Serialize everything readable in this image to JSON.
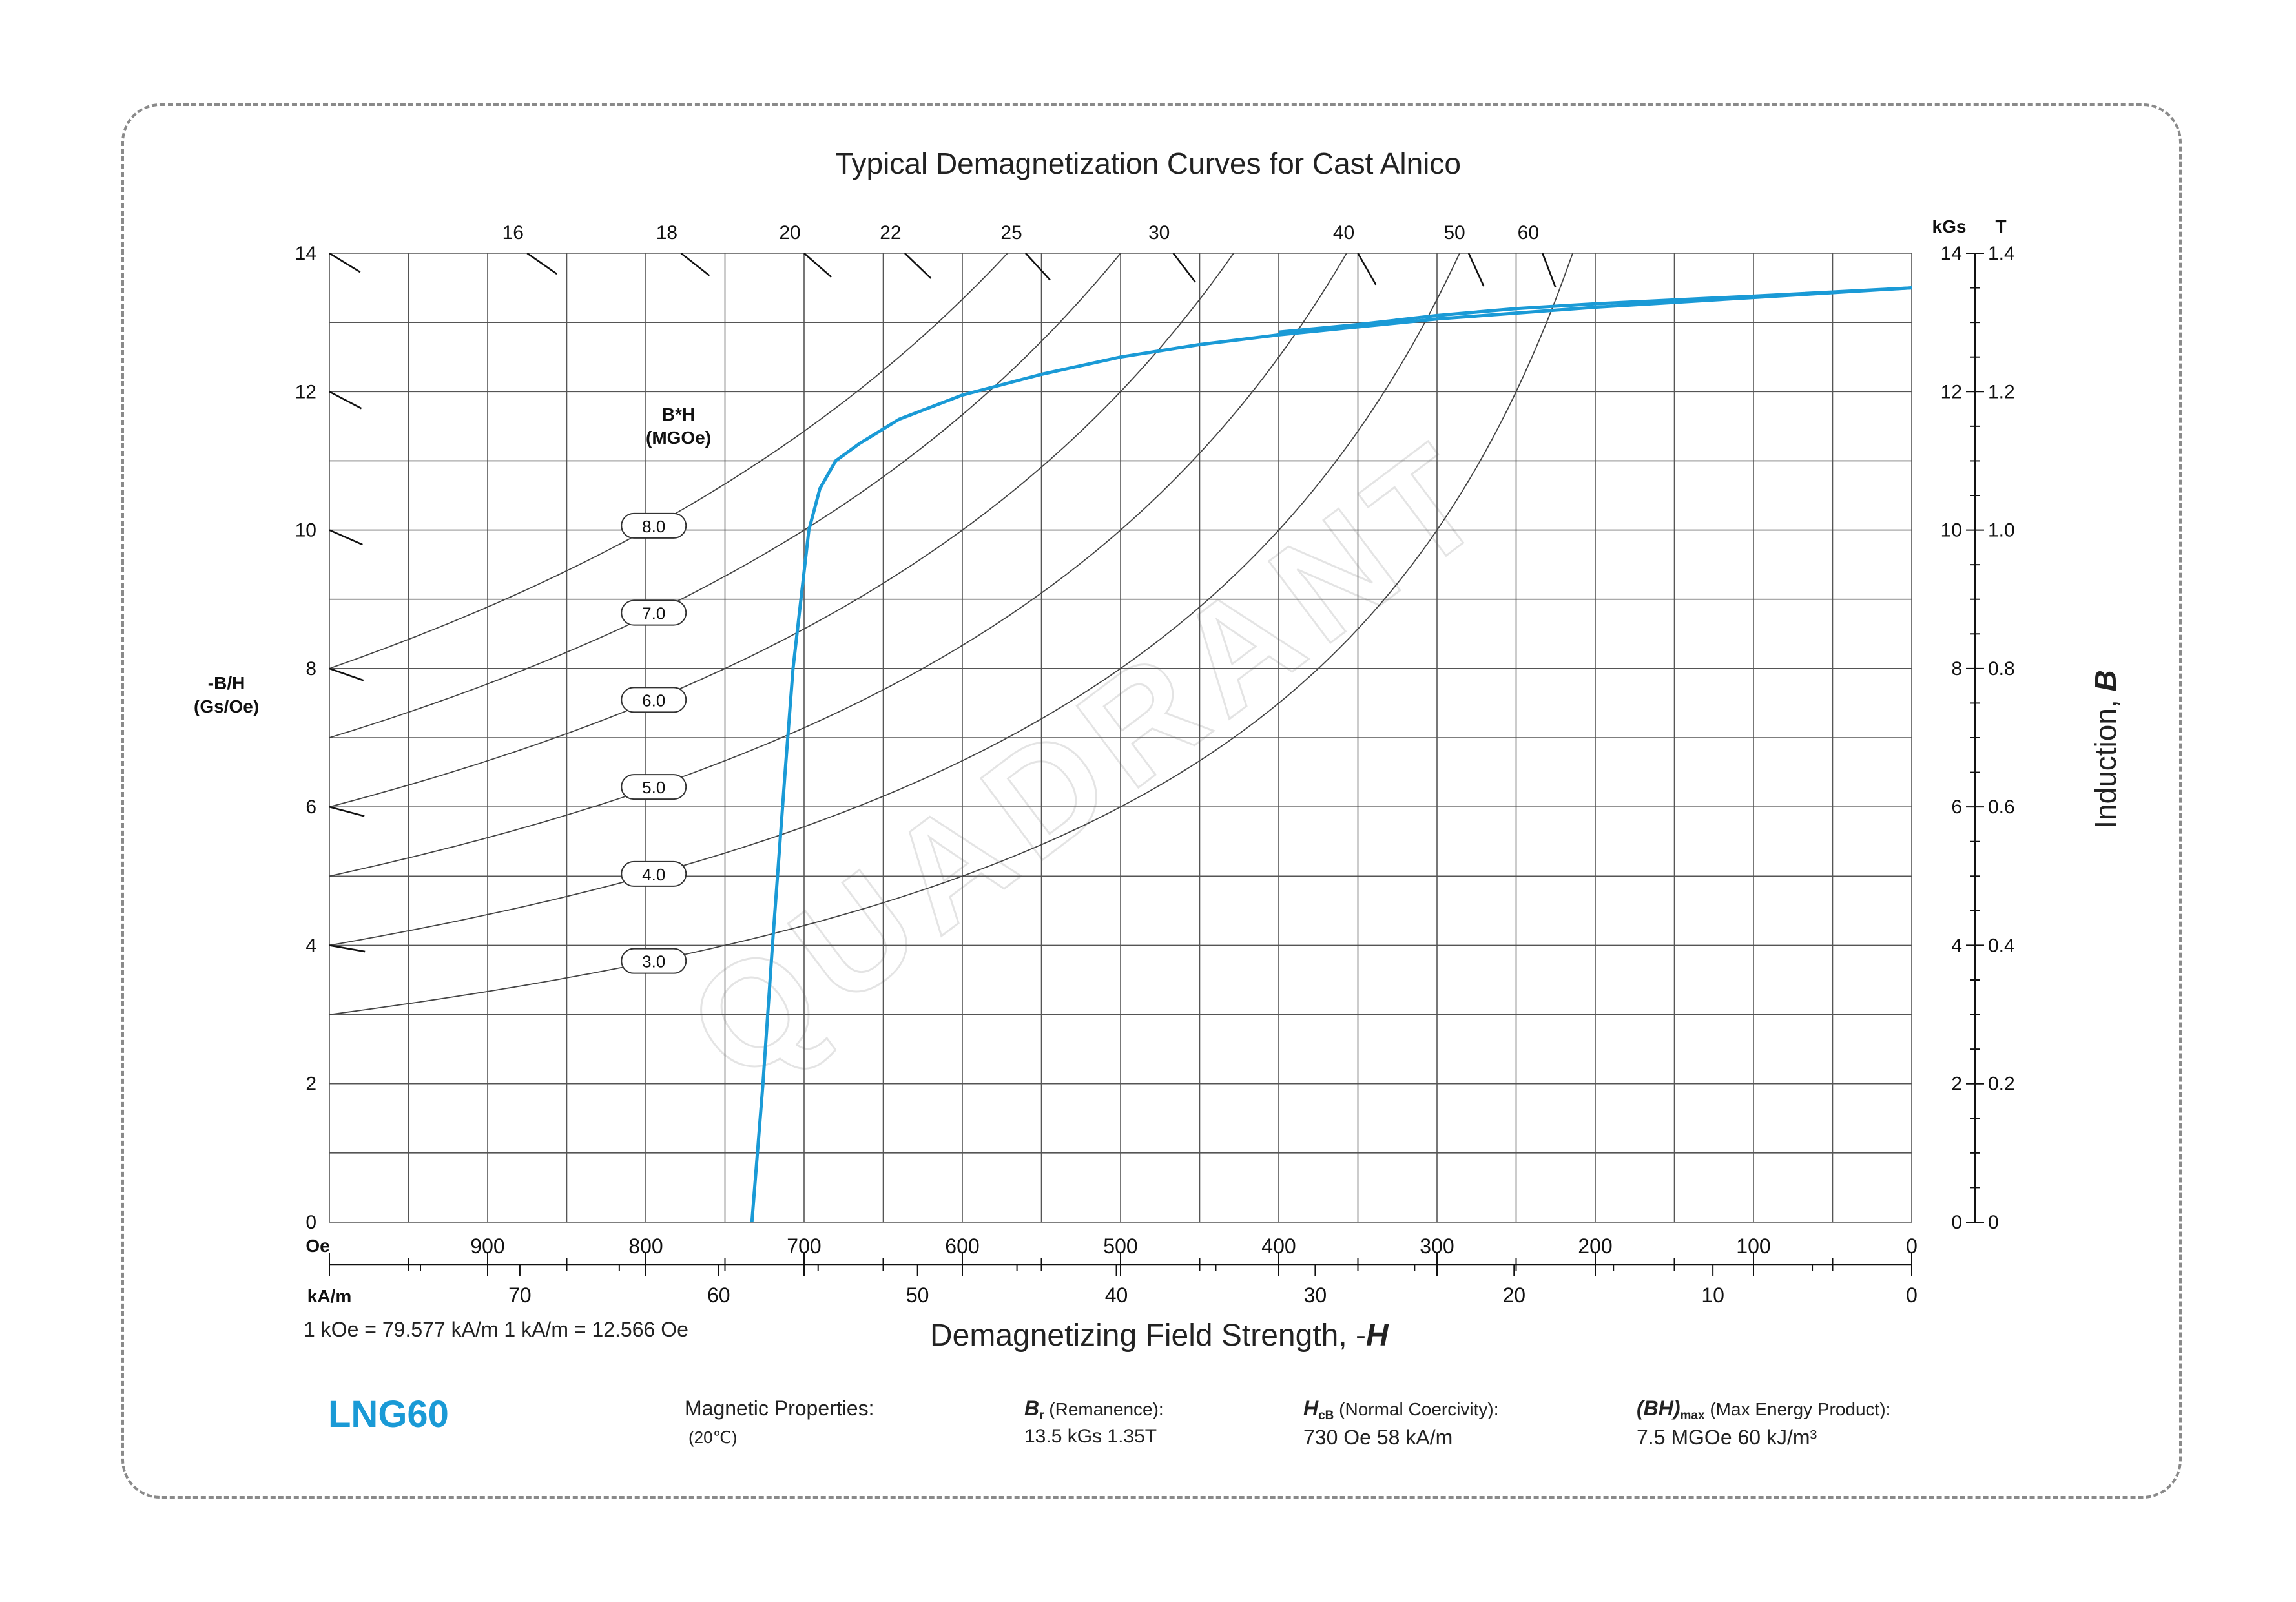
{
  "page": {
    "title": "Typical Demagnetization Curves for Cast Alnico",
    "conversion_note": "1 kOe = 79.577 kA/m   1 kA/m = 12.566 Oe",
    "x_axis_title_prefix": "Demagnetizing Field Strength, -",
    "x_axis_title_symbol": "H",
    "y_right_title_prefix": "Induction, ",
    "y_right_title_symbol": "B",
    "y_left_title_line1": "-B/H",
    "y_left_title_line2": "(Gs/Oe)",
    "bh_title_line1": "B*H",
    "bh_title_line2": "(MGOe)",
    "watermark": "QUADRANT"
  },
  "properties": {
    "grade": "LNG60",
    "heading": "Magnetic Properties:",
    "temperature": "(20℃)",
    "br": {
      "symbol": "B",
      "sub": "r",
      "label": " (Remanence):",
      "value": "13.5 kGs    1.35T"
    },
    "hcb": {
      "symbol": "H",
      "sub": "cB",
      "label": " (Normal Coercivity):",
      "value": "730 Oe      58 kA/m"
    },
    "bhmax": {
      "symbol": "(BH)",
      "sub": "max",
      "label": " (Max Energy Product):",
      "value": "7.5 MGOe    60 kJ/m³"
    }
  },
  "chart_data": {
    "type": "line",
    "x_unit_primary": "Oe",
    "x_unit_secondary": "kA/m",
    "y_unit_left": "",
    "y_unit_right_primary": "kGs",
    "y_unit_right_secondary": "T",
    "xlim": [
      1000,
      0
    ],
    "ylim": [
      0,
      14
    ],
    "x_ticks_oe": [
      "900",
      "800",
      "700",
      "600",
      "500",
      "400",
      "300",
      "200",
      "100",
      "0"
    ],
    "x_ticks_oe_values": [
      900,
      800,
      700,
      600,
      500,
      400,
      300,
      200,
      100,
      0
    ],
    "x_ticks_ka": [
      "70",
      "60",
      "50",
      "40",
      "30",
      "20",
      "10",
      "0"
    ],
    "x_ticks_ka_values": [
      70,
      60,
      50,
      40,
      30,
      20,
      10,
      0
    ],
    "y_ticks": [
      "0",
      "2",
      "4",
      "6",
      "8",
      "10",
      "12",
      "14"
    ],
    "y_ticks_values": [
      0,
      2,
      4,
      6,
      8,
      10,
      12,
      14
    ],
    "y_ticks_tesla": [
      "0",
      "0.2",
      "0.4",
      "0.6",
      "0.8",
      "1.0",
      "1.2",
      "1.4"
    ],
    "permeance_lines": {
      "unit": "Gs/Oe",
      "top_labels": [
        "16",
        "18",
        "20",
        "22",
        "25",
        "30",
        "40",
        "50",
        "60"
      ],
      "top_values": [
        16,
        18,
        20,
        22,
        25,
        30,
        40,
        50,
        60
      ],
      "left_values": [
        14,
        12,
        10,
        8,
        6,
        4
      ]
    },
    "energy_contours": {
      "unit": "MGOe",
      "labels": [
        "8.0",
        "7.0",
        "6.0",
        "5.0",
        "4.0",
        "3.0"
      ],
      "values": [
        8,
        7,
        6,
        5,
        4,
        3
      ]
    },
    "series": [
      {
        "name": "",
        "color": "#1a9ad6",
        "points": [
          [
            733,
            0
          ],
          [
            726,
            2
          ],
          [
            720,
            4
          ],
          [
            712,
            6.5
          ],
          [
            707,
            8
          ],
          [
            702,
            9
          ],
          [
            697,
            10
          ],
          [
            690,
            10.6
          ],
          [
            680,
            11.0
          ],
          [
            665,
            11.25
          ],
          [
            640,
            11.6
          ],
          [
            600,
            11.95
          ],
          [
            550,
            12.25
          ],
          [
            500,
            12.5
          ],
          [
            450,
            12.68
          ],
          [
            400,
            12.82
          ],
          [
            300,
            13.05
          ],
          [
            200,
            13.22
          ],
          [
            100,
            13.36
          ],
          [
            0,
            13.5
          ]
        ]
      },
      {
        "name": "",
        "color": "#1a9ad6",
        "points": [
          [
            400,
            12.86
          ],
          [
            350,
            12.97
          ],
          [
            300,
            13.1
          ],
          [
            250,
            13.2
          ],
          [
            200,
            13.27
          ],
          [
            100,
            13.38
          ],
          [
            0,
            13.5
          ]
        ]
      }
    ]
  }
}
